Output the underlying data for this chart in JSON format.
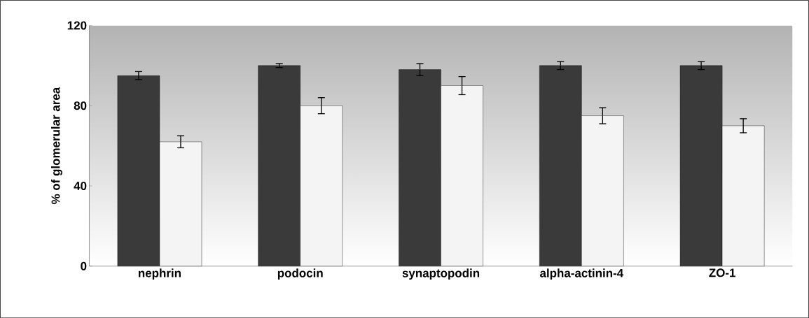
{
  "chart_data": {
    "type": "bar",
    "ylabel": "% of glomerular area",
    "categories": [
      "nephrin",
      "podocin",
      "synaptopodin",
      "alpha-actinin-4",
      "ZO-1"
    ],
    "series": [
      {
        "color": "#3a3a3a",
        "values": [
          95,
          100,
          98,
          100,
          100
        ],
        "errors": [
          2,
          1,
          3,
          2,
          2
        ]
      },
      {
        "color": "#f4f4f4",
        "values": [
          62,
          80,
          90,
          75,
          70
        ],
        "errors": [
          3,
          4,
          4.5,
          4,
          3.5
        ]
      }
    ],
    "ylim": [
      0,
      120
    ],
    "yticks": [
      0,
      40,
      80,
      120
    ],
    "grid": false
  }
}
